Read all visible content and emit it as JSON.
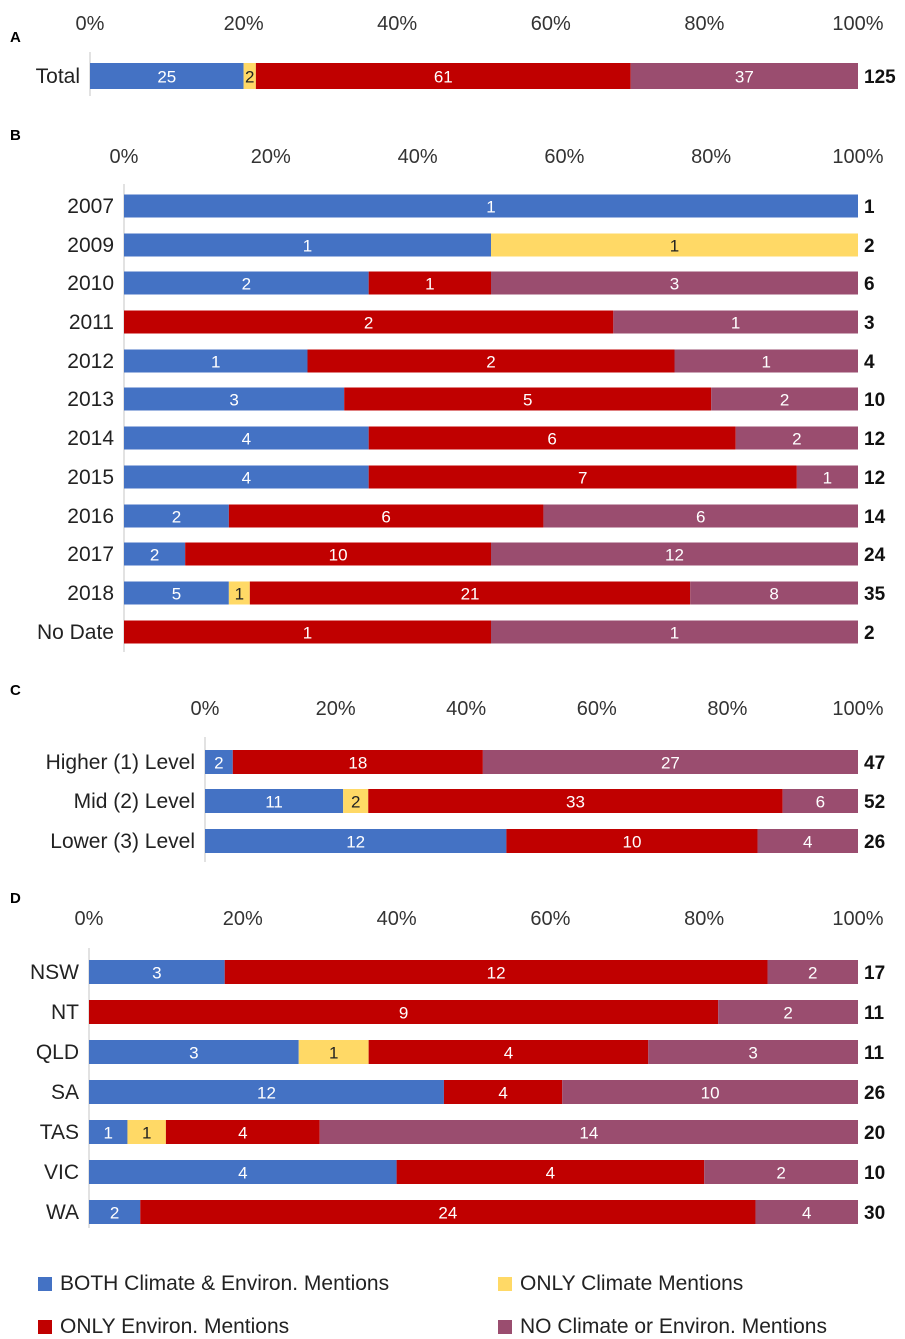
{
  "colors": {
    "both": "#4472C4",
    "climate": "#FFD966",
    "environ": "#C00000",
    "none": "#9A4D6F"
  },
  "legend": {
    "both": "BOTH Climate & Environ. Mentions",
    "climate": "ONLY Climate Mentions",
    "environ": "ONLY Environ. Mentions",
    "none": "NO Climate or Environ. Mentions"
  },
  "chart_data": [
    {
      "type": "bar",
      "orientation": "horizontal-stacked-100",
      "panel": "A",
      "xticks": [
        "0%",
        "20%",
        "40%",
        "60%",
        "80%",
        "100%"
      ],
      "categories": [
        "Total"
      ],
      "series_keys": [
        "both",
        "climate",
        "environ",
        "none"
      ],
      "rows": [
        {
          "label": "Total",
          "values": [
            25,
            2,
            61,
            37
          ],
          "total": "125"
        }
      ]
    },
    {
      "type": "bar",
      "orientation": "horizontal-stacked-100",
      "panel": "B",
      "xticks": [
        "0%",
        "20%",
        "40%",
        "60%",
        "80%",
        "100%"
      ],
      "series_keys": [
        "both",
        "climate",
        "environ",
        "none"
      ],
      "rows": [
        {
          "label": "2007",
          "values": [
            1,
            0,
            0,
            0
          ],
          "total": "1"
        },
        {
          "label": "2009",
          "values": [
            1,
            1,
            0,
            0
          ],
          "total": "2"
        },
        {
          "label": "2010",
          "values": [
            2,
            0,
            1,
            3
          ],
          "total": "6"
        },
        {
          "label": "2011",
          "values": [
            0,
            0,
            2,
            1
          ],
          "total": "3"
        },
        {
          "label": "2012",
          "values": [
            1,
            0,
            2,
            1
          ],
          "total": "4"
        },
        {
          "label": "2013",
          "values": [
            3,
            0,
            5,
            2
          ],
          "total": "10"
        },
        {
          "label": "2014",
          "values": [
            4,
            0,
            6,
            2
          ],
          "total": "12"
        },
        {
          "label": "2015",
          "values": [
            4,
            0,
            7,
            1
          ],
          "total": "12"
        },
        {
          "label": "2016",
          "values": [
            2,
            0,
            6,
            6
          ],
          "total": "14"
        },
        {
          "label": "2017",
          "values": [
            2,
            0,
            10,
            12
          ],
          "total": "24"
        },
        {
          "label": "2018",
          "values": [
            5,
            1,
            21,
            8
          ],
          "total": "35"
        },
        {
          "label": "No Date",
          "values": [
            0,
            0,
            1,
            1
          ],
          "total": "2"
        }
      ]
    },
    {
      "type": "bar",
      "orientation": "horizontal-stacked-100",
      "panel": "C",
      "xticks": [
        "0%",
        "20%",
        "40%",
        "60%",
        "80%",
        "100%"
      ],
      "series_keys": [
        "both",
        "climate",
        "environ",
        "none"
      ],
      "rows": [
        {
          "label": "Higher (1) Level",
          "values": [
            2,
            0,
            18,
            27
          ],
          "total": "47"
        },
        {
          "label": "Mid (2) Level",
          "values": [
            11,
            2,
            33,
            6
          ],
          "total": "52"
        },
        {
          "label": "Lower (3) Level",
          "values": [
            12,
            0,
            10,
            4
          ],
          "total": "26"
        }
      ]
    },
    {
      "type": "bar",
      "orientation": "horizontal-stacked-100",
      "panel": "D",
      "xticks": [
        "0%",
        "20%",
        "40%",
        "60%",
        "80%",
        "100%"
      ],
      "series_keys": [
        "both",
        "climate",
        "environ",
        "none"
      ],
      "rows": [
        {
          "label": "NSW",
          "values": [
            3,
            0,
            12,
            2
          ],
          "total": "17"
        },
        {
          "label": "NT",
          "values": [
            0,
            0,
            9,
            2
          ],
          "total": "11"
        },
        {
          "label": "QLD",
          "values": [
            3,
            1,
            4,
            3
          ],
          "total": "11"
        },
        {
          "label": "SA",
          "values": [
            12,
            0,
            4,
            10
          ],
          "total": "26"
        },
        {
          "label": "TAS",
          "values": [
            1,
            1,
            4,
            14
          ],
          "total": "20"
        },
        {
          "label": "VIC",
          "values": [
            4,
            0,
            4,
            2
          ],
          "total": "10"
        },
        {
          "label": "WA",
          "values": [
            2,
            0,
            24,
            4
          ],
          "total": "30"
        }
      ]
    }
  ]
}
